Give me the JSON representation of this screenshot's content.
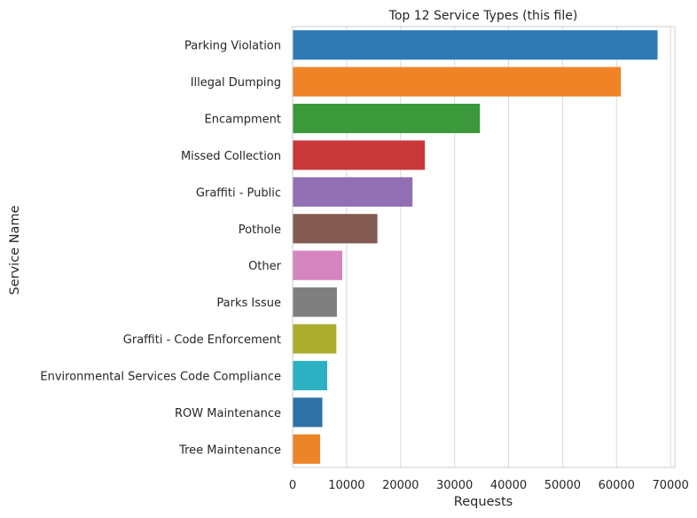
{
  "chart_data": {
    "type": "bar",
    "orientation": "horizontal",
    "title": "Top 12 Service Types (this file)",
    "xlabel": "Requests",
    "ylabel": "Service Name",
    "xlim": [
      0,
      70800
    ],
    "xticks": [
      0,
      10000,
      20000,
      30000,
      40000,
      50000,
      60000,
      70000
    ],
    "xtick_labels": [
      "0",
      "10000",
      "20000",
      "30000",
      "40000",
      "50000",
      "60000",
      "70000"
    ],
    "grid": "vertical",
    "legend": "none",
    "categories": [
      "Parking Violation",
      "Illegal Dumping",
      "Encampment",
      "Missed Collection",
      "Graffiti - Public",
      "Pothole",
      "Other",
      "Parks Issue",
      "Graffiti - Code Enforcement",
      "Environmental Services Code Compliance",
      "ROW Maintenance",
      "Tree Maintenance"
    ],
    "values": [
      67600,
      60800,
      34700,
      24500,
      22200,
      15700,
      9200,
      8200,
      8100,
      6400,
      5500,
      5100
    ],
    "colors": [
      "#2f79b5",
      "#ef8325",
      "#3b993b",
      "#c8383a",
      "#9070b3",
      "#845b52",
      "#d684bf",
      "#7f7f7f",
      "#acac2d",
      "#2cb1c2",
      "#2f71a6",
      "#ec8528"
    ]
  }
}
